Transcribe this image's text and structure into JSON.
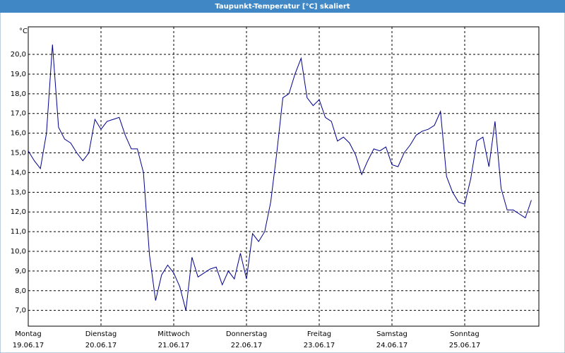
{
  "chart_data": {
    "type": "line",
    "title": "Taupunkt-Temperatur [°C] skaliert",
    "y_label": "°C",
    "x_labels": [
      {
        "day": "Montag",
        "date": "19.06.17"
      },
      {
        "day": "Dienstag",
        "date": "20.06.17"
      },
      {
        "day": "Mittwoch",
        "date": "21.06.17"
      },
      {
        "day": "Donnerstag",
        "date": "22.06.17"
      },
      {
        "day": "Freitag",
        "date": "23.06.17"
      },
      {
        "day": "Samstag",
        "date": "24.06.17"
      },
      {
        "day": "Sonntag",
        "date": "25.06.17"
      }
    ],
    "color": "#00008b",
    "grid": true,
    "ylim": [
      6.2,
      21.4
    ],
    "yticks": [
      {
        "value": 7,
        "label": "7,0"
      },
      {
        "value": 8,
        "label": "8,0"
      },
      {
        "value": 9,
        "label": "9,0"
      },
      {
        "value": 10,
        "label": "10,0"
      },
      {
        "value": 11,
        "label": "11,0"
      },
      {
        "value": 12,
        "label": "12,0"
      },
      {
        "value": 13,
        "label": "13,0"
      },
      {
        "value": 14,
        "label": "14,0"
      },
      {
        "value": 15,
        "label": "15,0"
      },
      {
        "value": 16,
        "label": "16,0"
      },
      {
        "value": 17,
        "label": "17,0"
      },
      {
        "value": 18,
        "label": "18,0"
      },
      {
        "value": 19,
        "label": "19,0"
      },
      {
        "value": 20,
        "label": "20,0"
      }
    ],
    "values": [
      15.1,
      14.6,
      14.2,
      16.0,
      20.5,
      16.3,
      15.7,
      15.5,
      15.0,
      14.6,
      15.0,
      16.7,
      16.2,
      16.6,
      16.7,
      16.8,
      15.9,
      15.2,
      15.2,
      14.0,
      9.8,
      7.5,
      8.8,
      9.3,
      8.9,
      8.2,
      7.0,
      9.7,
      8.7,
      8.9,
      9.1,
      9.2,
      8.3,
      9.0,
      8.6,
      9.9,
      8.6,
      10.9,
      10.5,
      11.0,
      12.5,
      15.0,
      17.8,
      18.0,
      19.0,
      19.8,
      17.8,
      17.4,
      17.7,
      16.8,
      16.6,
      15.6,
      15.8,
      15.5,
      14.9,
      13.9,
      14.6,
      15.2,
      15.1,
      15.3,
      14.4,
      14.3,
      15.0,
      15.4,
      15.9,
      16.1,
      16.2,
      16.4,
      17.1,
      13.8,
      13.0,
      12.5,
      12.4,
      13.7,
      15.6,
      15.8,
      14.3,
      16.6,
      13.2,
      12.1,
      12.1,
      11.9,
      11.7,
      12.6
    ]
  }
}
